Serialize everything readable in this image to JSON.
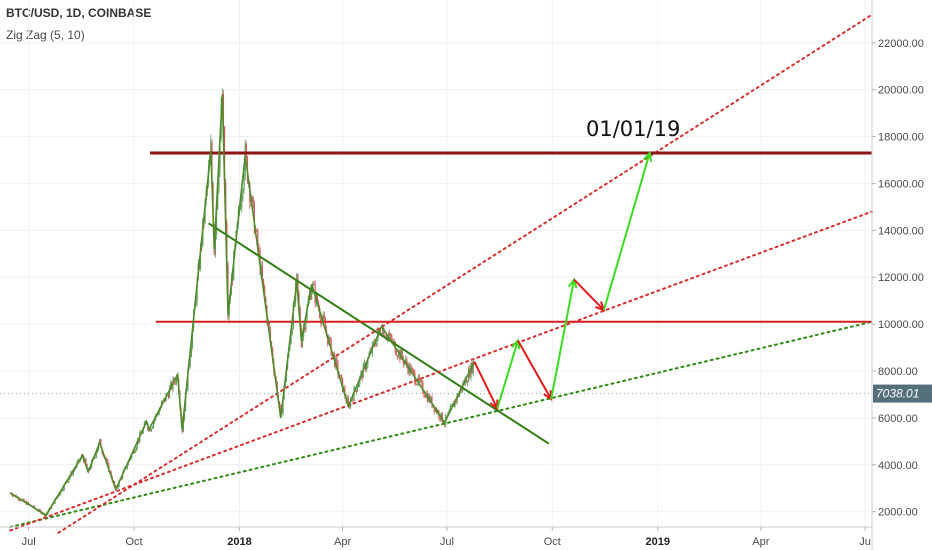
{
  "header": {
    "symbol": "BTC/USD, 1D, COINBASE",
    "indicator": "Zig Zag (5, 10)"
  },
  "annotation": "01/01/19",
  "colors": {
    "candle_up": "#5e9e5e",
    "candle_down": "#d35b5b",
    "zigzag": "#4f8a2b",
    "trend_green": "#2f7d14",
    "resistance": "#d61f1f",
    "resistance_dark": "#8e1414",
    "arrow_red": "#e3191c",
    "arrow_green": "#3adc22",
    "price_tag": "#546e7a",
    "price_line": "#7ab0a6",
    "grid": "#eef1f4"
  },
  "chart_data": {
    "type": "line",
    "title": "BTC/USD, 1D, COINBASE",
    "xlabel": "",
    "ylabel": "",
    "x_ticks": [
      "Jul",
      "Oct",
      "2018",
      "Apr",
      "Jul",
      "Oct",
      "2019",
      "Apr",
      "Ju"
    ],
    "y_ticks": [
      "2000.00",
      "4000.00",
      "6000.00",
      "8000.00",
      "10000.00",
      "12000.00",
      "14000.00",
      "16000.00",
      "18000.00",
      "20000.00",
      "22000.00"
    ],
    "ylim": [
      1100,
      23800
    ],
    "xlim": [
      "2017-06-06",
      "2019-07-07"
    ],
    "last_price": "7038.01",
    "series": [
      {
        "name": "Zig Zag (5, 10)",
        "points": [
          [
            "2017-06-15",
            2800
          ],
          [
            "2017-07-16",
            1850
          ],
          [
            "2017-08-17",
            4400
          ],
          [
            "2017-08-22",
            3700
          ],
          [
            "2017-09-01",
            4950
          ],
          [
            "2017-09-15",
            2950
          ],
          [
            "2017-10-12",
            5850
          ],
          [
            "2017-10-14",
            5500
          ],
          [
            "2017-11-08",
            7850
          ],
          [
            "2017-11-12",
            5500
          ],
          [
            "2017-12-07",
            17400
          ],
          [
            "2017-12-10",
            13200
          ],
          [
            "2017-12-17",
            19800
          ],
          [
            "2017-12-22",
            10400
          ],
          [
            "2018-01-06",
            17200
          ],
          [
            "2018-02-06",
            6000
          ],
          [
            "2018-02-20",
            11800
          ],
          [
            "2018-02-24",
            9300
          ],
          [
            "2018-03-05",
            11700
          ],
          [
            "2018-04-06",
            6500
          ],
          [
            "2018-05-05",
            9900
          ],
          [
            "2018-06-29",
            5800
          ],
          [
            "2018-07-25",
            8400
          ]
        ]
      }
    ],
    "annotations": {
      "trendlines": [
        {
          "from": [
            "2017-12-05",
            14300
          ],
          "to": [
            "2018-09-28",
            4900
          ],
          "style": "solid",
          "color": "green"
        },
        {
          "from": [
            "2017-06-15",
            1350
          ],
          "to": [
            "2019-07-07",
            10100
          ],
          "style": "dotted",
          "color": "green"
        },
        {
          "from": [
            "2017-06-15",
            1200
          ],
          "to": [
            "2019-07-07",
            14800
          ],
          "style": "dotted",
          "color": "red"
        },
        {
          "from": [
            "2017-07-27",
            1100
          ],
          "to": [
            "2019-07-07",
            23200
          ],
          "style": "dotted",
          "color": "red"
        }
      ],
      "horizontal_lines": [
        {
          "y": 17300,
          "from": "2017-10-15",
          "color": "dark-red"
        },
        {
          "y": 10100,
          "from": "2017-10-20",
          "color": "red"
        }
      ],
      "arrows": [
        {
          "from": [
            "2018-07-25",
            8400
          ],
          "to": [
            "2018-08-14",
            6400
          ],
          "color": "red"
        },
        {
          "from": [
            "2018-08-14",
            6400
          ],
          "to": [
            "2018-09-01",
            9300
          ],
          "color": "green"
        },
        {
          "from": [
            "2018-09-01",
            9300
          ],
          "to": [
            "2018-09-30",
            6800
          ],
          "color": "red"
        },
        {
          "from": [
            "2018-09-30",
            6800
          ],
          "to": [
            "2018-10-20",
            11900
          ],
          "color": "green"
        },
        {
          "from": [
            "2018-10-20",
            11900
          ],
          "to": [
            "2018-11-15",
            10600
          ],
          "color": "red"
        },
        {
          "from": [
            "2018-11-15",
            10600
          ],
          "to": [
            "2018-12-25",
            17300
          ],
          "color": "green"
        }
      ]
    }
  }
}
